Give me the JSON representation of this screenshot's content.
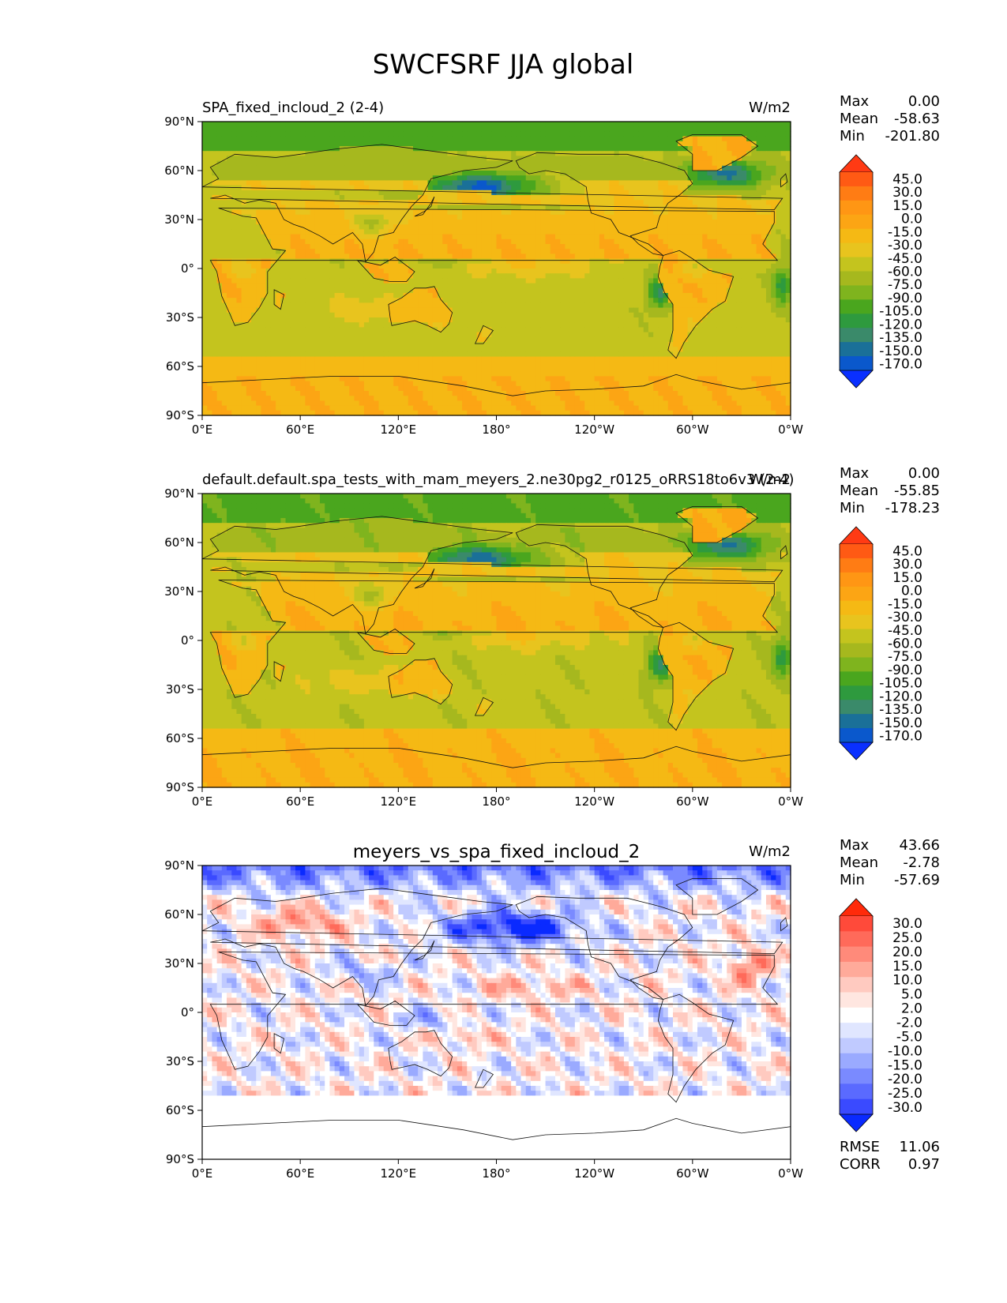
{
  "figure": {
    "title": "SWCFSRF JJA global"
  },
  "chart_data": [
    {
      "type": "heatmap",
      "title": "SPA_fixed_incloud_2 (2-4)",
      "units": "W/m2",
      "title_position": "left",
      "stats": [
        {
          "label": "Max",
          "value": "0.00"
        },
        {
          "label": "Mean",
          "value": "-58.63"
        },
        {
          "label": "Min",
          "value": "-201.80"
        }
      ],
      "colorbar": {
        "levels": [
          "45.0",
          "30.0",
          "15.0",
          "0.0",
          "-15.0",
          "-30.0",
          "-45.0",
          "-60.0",
          "-75.0",
          "-90.0",
          "-105.0",
          "-120.0",
          "-135.0",
          "-150.0",
          "-170.0"
        ],
        "colors": [
          "#ff3a14",
          "#ff5a14",
          "#ff7c14",
          "#ff9614",
          "#fca514",
          "#f5b914",
          "#e8c41e",
          "#c4c41e",
          "#a6b81e",
          "#7fb41e",
          "#4aa61e",
          "#2e9a3e",
          "#3a8a6a",
          "#1a7098",
          "#0a58cc",
          "#0a30ff"
        ],
        "extend": "both"
      },
      "x_ticks": [
        "0°E",
        "60°E",
        "120°E",
        "180°",
        "120°W",
        "60°W",
        "0°W"
      ],
      "y_ticks": [
        "90°N",
        "60°N",
        "30°N",
        "0°",
        "30°S",
        "60°S",
        "90°S"
      ],
      "field": "diverging_swcf_model_a"
    },
    {
      "type": "heatmap",
      "title": "default.default.spa_tests_with_mam_meyers_2.ne30pg2_r0125_oRRS18to6v3 (2-4)",
      "units": "W/m2",
      "title_position": "left",
      "stats": [
        {
          "label": "Max",
          "value": "0.00"
        },
        {
          "label": "Mean",
          "value": "-55.85"
        },
        {
          "label": "Min",
          "value": "-178.23"
        }
      ],
      "colorbar": {
        "levels": [
          "45.0",
          "30.0",
          "15.0",
          "0.0",
          "-15.0",
          "-30.0",
          "-45.0",
          "-60.0",
          "-75.0",
          "-90.0",
          "-105.0",
          "-120.0",
          "-135.0",
          "-150.0",
          "-170.0"
        ],
        "colors": [
          "#ff3a14",
          "#ff5a14",
          "#ff7c14",
          "#ff9614",
          "#fca514",
          "#f5b914",
          "#e8c41e",
          "#c4c41e",
          "#a6b81e",
          "#7fb41e",
          "#4aa61e",
          "#2e9a3e",
          "#3a8a6a",
          "#1a7098",
          "#0a58cc",
          "#0a30ff"
        ],
        "extend": "both"
      },
      "x_ticks": [
        "0°E",
        "60°E",
        "120°E",
        "180°",
        "120°W",
        "60°W",
        "0°W"
      ],
      "y_ticks": [
        "90°N",
        "60°N",
        "30°N",
        "0°",
        "30°S",
        "60°S",
        "90°S"
      ],
      "field": "diverging_swcf_model_b"
    },
    {
      "type": "heatmap",
      "title": "meyers_vs_spa_fixed_incloud_2",
      "units": "W/m2",
      "title_position": "center",
      "stats": [
        {
          "label": "Max",
          "value": "43.66"
        },
        {
          "label": "Mean",
          "value": "-2.78"
        },
        {
          "label": "Min",
          "value": "-57.69"
        }
      ],
      "extra_stats": [
        {
          "label": "RMSE",
          "value": "11.06"
        },
        {
          "label": "CORR",
          "value": "0.97"
        }
      ],
      "colorbar": {
        "levels": [
          "30.0",
          "25.0",
          "20.0",
          "15.0",
          "10.0",
          "5.0",
          "2.0",
          "-2.0",
          "-5.0",
          "-10.0",
          "-15.0",
          "-20.0",
          "-25.0",
          "-30.0"
        ],
        "colors": [
          "#ff2a0a",
          "#ff4a3a",
          "#ff6a5a",
          "#ff8a7a",
          "#ffaa9a",
          "#ffcac0",
          "#ffe6e0",
          "#ffffff",
          "#e0e6ff",
          "#c0caff",
          "#9aaaff",
          "#7a8aff",
          "#5a6aff",
          "#3a4aff",
          "#0a2aff"
        ],
        "extend": "both"
      },
      "x_ticks": [
        "0°E",
        "60°E",
        "120°E",
        "180°",
        "120°W",
        "60°W",
        "0°W"
      ],
      "y_ticks": [
        "90°N",
        "60°N",
        "30°N",
        "0°",
        "30°S",
        "60°S",
        "90°S"
      ],
      "field": "difference"
    }
  ]
}
